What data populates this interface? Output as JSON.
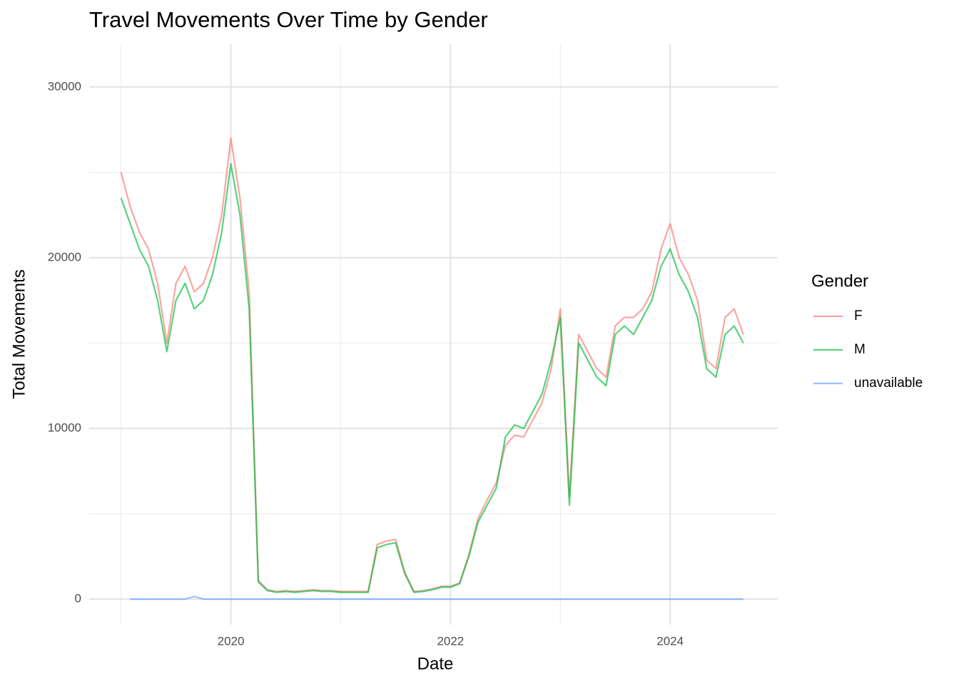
{
  "chart_data": {
    "type": "line",
    "title": "Travel Movements Over Time by Gender",
    "x_label": "Date",
    "y_label": "Total Movements",
    "legend_title": "Gender",
    "legend_position": "right",
    "grid": true,
    "x": [
      2019,
      2019.083,
      2019.167,
      2019.25,
      2019.333,
      2019.417,
      2019.5,
      2019.583,
      2019.667,
      2019.75,
      2019.833,
      2019.917,
      2020,
      2020.083,
      2020.167,
      2020.25,
      2020.333,
      2020.417,
      2020.5,
      2020.583,
      2020.667,
      2020.75,
      2020.833,
      2020.917,
      2021,
      2021.083,
      2021.167,
      2021.25,
      2021.333,
      2021.417,
      2021.5,
      2021.583,
      2021.667,
      2021.75,
      2021.833,
      2021.917,
      2022,
      2022.083,
      2022.167,
      2022.25,
      2022.333,
      2022.417,
      2022.5,
      2022.583,
      2022.667,
      2022.75,
      2022.833,
      2022.917,
      2023,
      2023.083,
      2023.167,
      2023.25,
      2023.333,
      2023.417,
      2023.5,
      2023.583,
      2023.667,
      2023.75,
      2023.833,
      2023.917,
      2024,
      2024.083,
      2024.167,
      2024.25,
      2024.333,
      2024.417,
      2024.5,
      2024.583,
      2024.667
    ],
    "series": [
      {
        "name": "F",
        "color": "#f8766d",
        "values": [
          25000,
          23000,
          21500,
          20500,
          18500,
          15000,
          18500,
          19500,
          18000,
          18500,
          20000,
          22500,
          27000,
          23500,
          18000,
          1100,
          550,
          450,
          500,
          450,
          500,
          550,
          500,
          500,
          450,
          450,
          450,
          450,
          3200,
          3400,
          3500,
          1600,
          450,
          500,
          600,
          750,
          750,
          950,
          2600,
          4700,
          5800,
          6800,
          9000,
          9600,
          9500,
          10500,
          11500,
          13500,
          17000,
          6000,
          15500,
          14500,
          13500,
          13000,
          16000,
          16500,
          16500,
          17000,
          18000,
          20500,
          22000,
          20000,
          19000,
          17500,
          14000,
          13500,
          16500,
          17000,
          15500
        ]
      },
      {
        "name": "M",
        "color": "#00ba38",
        "values": [
          23500,
          22000,
          20500,
          19500,
          17500,
          14500,
          17500,
          18500,
          17000,
          17500,
          19000,
          21500,
          25500,
          22500,
          17000,
          1000,
          500,
          400,
          450,
          400,
          450,
          500,
          450,
          450,
          400,
          400,
          400,
          400,
          3000,
          3200,
          3300,
          1500,
          400,
          450,
          550,
          700,
          700,
          900,
          2500,
          4500,
          5500,
          6500,
          9500,
          10200,
          10000,
          11000,
          12000,
          14000,
          16500,
          5500,
          15000,
          14000,
          13000,
          12500,
          15500,
          16000,
          15500,
          16500,
          17500,
          19500,
          20500,
          19000,
          18000,
          16500,
          13500,
          13000,
          15500,
          16000,
          15000
        ]
      },
      {
        "name": "unavailable",
        "color": "#619cff",
        "values": [
          null,
          0,
          0,
          0,
          0,
          0,
          0,
          0,
          150,
          0,
          0,
          0,
          0,
          0,
          0,
          0,
          0,
          0,
          0,
          0,
          0,
          0,
          0,
          0,
          0,
          0,
          0,
          0,
          0,
          0,
          0,
          0,
          0,
          0,
          0,
          0,
          0,
          0,
          0,
          0,
          0,
          0,
          0,
          0,
          0,
          0,
          0,
          0,
          0,
          0,
          0,
          0,
          0,
          0,
          0,
          0,
          0,
          0,
          0,
          0,
          0,
          0,
          0,
          0,
          0,
          0,
          0,
          0,
          0
        ]
      }
    ],
    "xlim": [
      2018.71,
      2024.98
    ],
    "xticks": [
      2020,
      2022,
      2024
    ],
    "xminor_ticks": [
      2019,
      2021,
      2023
    ],
    "ylim": [
      -1500,
      32500
    ],
    "yticks": [
      0,
      10000,
      20000,
      30000
    ],
    "yminor_ticks": [
      5000,
      15000,
      25000
    ]
  }
}
